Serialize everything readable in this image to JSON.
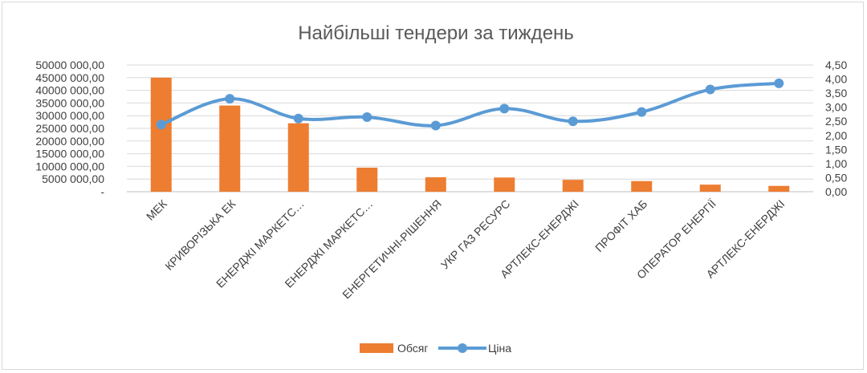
{
  "chart_data": {
    "type": "bar",
    "title": "Найбільші тендери за тиждень",
    "categories": [
      "МЕК",
      "КРИВОРІЗЬКА ЕК",
      "ЕНЕРДЖІ МАРКЕТС…",
      "ЕНЕРДЖІ МАРКЕТС…",
      "ЕНЕРГЕТИЧНІ-РІШЕННЯ",
      "УКР ГАЗ РЕСУРС",
      "АРТЛЕКС-ЕНЕРДЖІ",
      "ПРОФІТ ХАБ",
      "ОПЕРАТОР ЕНЕРГІЇ",
      "АРТЛЕКС-ЕНЕРДЖІ"
    ],
    "series": [
      {
        "name": "Обсяг",
        "kind": "bar",
        "axis": "left",
        "color": "#ED7D31",
        "values": [
          45000000,
          34000000,
          27000000,
          9500000,
          5700000,
          5600000,
          4700000,
          4200000,
          2800000,
          2300000
        ]
      },
      {
        "name": "Ціна",
        "kind": "line",
        "axis": "right",
        "color": "#5B9BD5",
        "values": [
          2.38,
          3.3,
          2.6,
          2.65,
          2.35,
          2.95,
          2.5,
          2.83,
          3.63,
          3.85
        ]
      }
    ],
    "left_axis": {
      "ylim": [
        0,
        50000000
      ],
      "ticks": [
        "-",
        "5000 000,00",
        "10000 000,00",
        "15000 000,00",
        "20000 000,00",
        "25000 000,00",
        "30000 000,00",
        "35000 000,00",
        "40000 000,00",
        "45000 000,00",
        "50000 000,00"
      ]
    },
    "right_axis": {
      "ylim": [
        0,
        4.5
      ],
      "ticks": [
        "0,00",
        "0,50",
        "1,00",
        "1,50",
        "2,00",
        "2,50",
        "3,00",
        "3,50",
        "4,00",
        "4,50"
      ]
    },
    "grid": true,
    "legend_position": "bottom"
  }
}
